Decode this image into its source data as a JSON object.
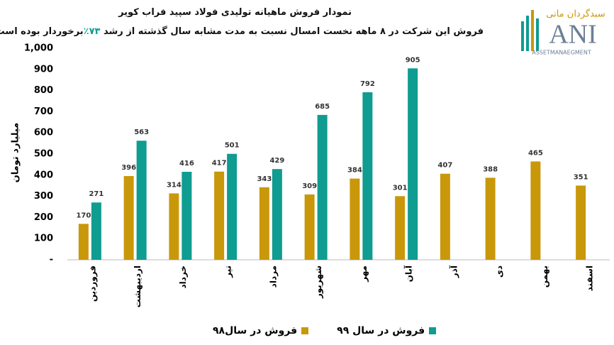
{
  "chart_data": {
    "type": "bar",
    "title": "نمودار فروش ماهیانه تولیدی فولاد سپید فراب کویر",
    "subtitle": [
      "فروش این شرکت در ۸ ماهه نخست امسال نسبت به مدت مشابه سال گذشته از رشد ",
      "۷۳٪",
      "برخوردار بوده است ."
    ],
    "y_label": "میلیارد تومان",
    "categories": [
      "فروردین",
      "اردیبهشت",
      "خرداد",
      "تیر",
      "مرداد",
      "شهریور",
      "مهر",
      "آبان",
      "آذر",
      "دی",
      "بهمن",
      "اسفند"
    ],
    "series": [
      {
        "name": "فروش در سال۹۸",
        "color": "#c9980a",
        "values": [
          170,
          396,
          314,
          417,
          343,
          309,
          384,
          301,
          407,
          388,
          465,
          351
        ]
      },
      {
        "name": "فروش در سال ۹۹",
        "color": "#0f9c91",
        "values": [
          271,
          563,
          416,
          501,
          429,
          685,
          792,
          905,
          null,
          null,
          null,
          null
        ]
      }
    ],
    "ylim": [
      0,
      1000
    ],
    "yticks": [
      {
        "value": 0,
        "label": "-"
      },
      100,
      200,
      300,
      400,
      500,
      600,
      700,
      800,
      900,
      {
        "value": 1000,
        "label": "1,000"
      }
    ],
    "logo": {
      "brand": "سبدگردان مانی",
      "mark": "ANI",
      "tagline": "ASSETMANAEGMENT"
    }
  }
}
